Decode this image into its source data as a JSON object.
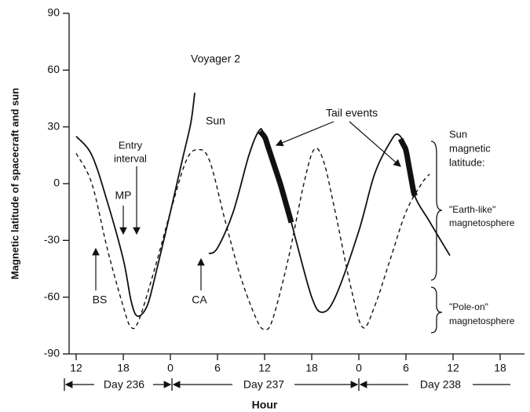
{
  "chart_data": {
    "type": "line",
    "y_label": "Magnetic latitude of spacecraft and sun",
    "x_label": "Hour",
    "xlim": [
      11.1,
      69.1
    ],
    "xticks": [
      12,
      18,
      {
        "value": 24,
        "label": "0"
      },
      {
        "value": 30,
        "label": "6"
      },
      {
        "value": 36,
        "label": "12"
      },
      {
        "value": 42,
        "label": "18"
      },
      {
        "value": 48,
        "label": "0"
      },
      {
        "value": 54,
        "label": "6"
      },
      {
        "value": 60,
        "label": "12"
      },
      {
        "value": 66,
        "label": "18"
      }
    ],
    "ylim": [
      -90,
      90
    ],
    "yticks": [
      -90,
      -60,
      -30,
      0,
      30,
      60,
      90
    ],
    "series": [
      {
        "name": "Voyager 2",
        "color": "#111111",
        "dash": false,
        "x": [
          12,
          14,
          16,
          18,
          19,
          19.8,
          21,
          22,
          24,
          25.6,
          26.6,
          27.1,
          null,
          28.9,
          30,
          32,
          34,
          35.3,
          36,
          38,
          39.5,
          40,
          42,
          43.3,
          45,
          48,
          50,
          52,
          53,
          54,
          55,
          57,
          59.6
        ],
        "values": [
          25,
          15,
          -10,
          -40,
          -62,
          -70,
          -65,
          -50,
          -15,
          14,
          32,
          48,
          null,
          -37,
          -34,
          -15,
          15,
          28,
          25,
          0,
          -22,
          -30,
          -60,
          -68,
          -60,
          -25,
          5,
          22,
          26,
          18,
          -5,
          -20,
          -38
        ]
      },
      {
        "name": "Sun",
        "color": "#111111",
        "dash": true,
        "x": [
          12,
          14,
          16,
          18,
          19,
          20,
          22,
          24,
          26,
          27.5,
          29,
          31,
          33,
          35,
          36,
          37,
          39,
          41,
          42.3,
          43.5,
          45,
          47,
          48.5,
          50,
          52,
          54,
          56,
          57
        ],
        "values": [
          16,
          0,
          -35,
          -65,
          -76,
          -72,
          -45,
          -15,
          12,
          18,
          12,
          -20,
          -50,
          -72,
          -77,
          -72,
          -40,
          0,
          18,
          12,
          -15,
          -55,
          -76,
          -65,
          -40,
          -15,
          0,
          5
        ]
      }
    ],
    "tail_events": {
      "label": "Tail events",
      "intervals": [
        [
          35.4,
          39.4
        ],
        [
          53.3,
          55.2
        ]
      ]
    },
    "annotations": {
      "entry": [
        "Entry",
        "interval"
      ],
      "mp": "MP",
      "bs": "BS",
      "ca": "CA",
      "sun_lat": [
        "Sun",
        "magnetic",
        "latitude:"
      ],
      "earth_like": [
        "\"Earth-like\"",
        "magnetosphere"
      ],
      "pole_on": [
        "\"Pole-on\"",
        "magnetosphere"
      ]
    },
    "days": [
      "Day 236",
      "Day 237",
      "Day 238"
    ]
  }
}
